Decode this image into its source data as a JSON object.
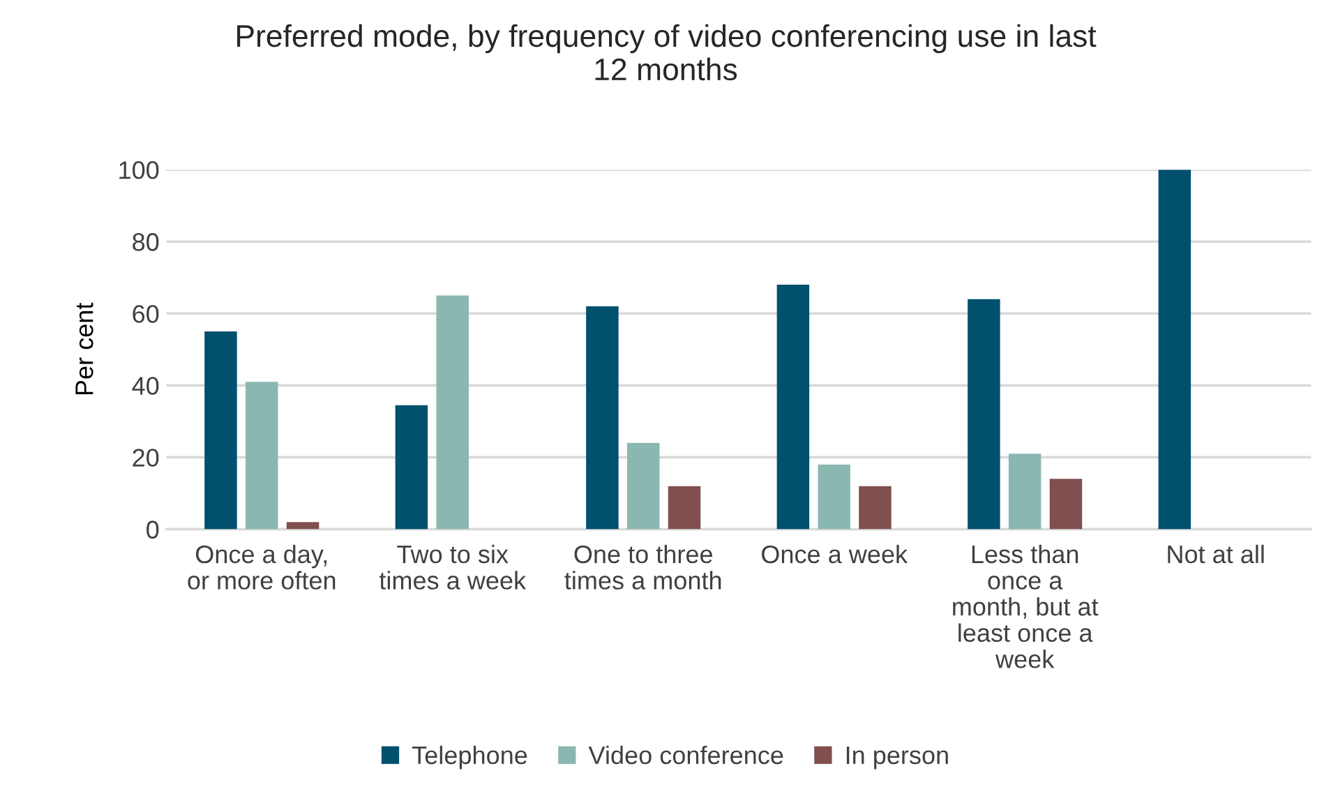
{
  "chart_data": {
    "type": "bar",
    "title": "Preferred mode, by frequency of video conferencing use in last 12 months",
    "ylabel": "Per cent",
    "categories": [
      "Once a day,\nor more often",
      "Two to six\ntimes a week",
      "One to three\ntimes a month",
      "Once a week",
      "Less than\nonce a\nmonth, but at\nleast once a\nweek",
      "Not at all"
    ],
    "series": [
      {
        "name": "Telephone",
        "color": "#00506e",
        "values": [
          55,
          34.5,
          62,
          68,
          64,
          100
        ]
      },
      {
        "name": "Video conference",
        "color": "#8ab8b0",
        "values": [
          41,
          65,
          24,
          18,
          21,
          0
        ]
      },
      {
        "name": "In person",
        "color": "#814f4f",
        "values": [
          2,
          0,
          12,
          12,
          14,
          0
        ]
      }
    ],
    "ylim": [
      0,
      100
    ],
    "yticks": [
      0,
      20,
      40,
      60,
      80,
      100
    ],
    "grid": "y",
    "legend": "bottom"
  }
}
